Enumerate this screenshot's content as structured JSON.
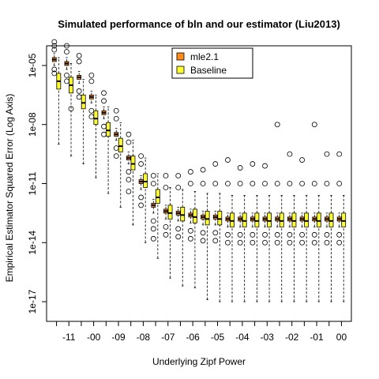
{
  "chart_data": {
    "type": "boxplot",
    "title": "Simulated performance of bln and our estimator (Liu2013)",
    "xlabel": "Underlying Zipf Power",
    "ylabel": "Empirical Estimator Squared Error (Log Axis)",
    "y_scale": "log10",
    "ylim": [
      1e-18,
      0.0001
    ],
    "yticks": [
      "1e-05",
      "1e-08",
      "1e-11",
      "1e-14",
      "1e-17"
    ],
    "ytick_values": [
      1e-05,
      1e-08,
      1e-11,
      1e-14,
      1e-17
    ],
    "xtick_labels": [
      "-11",
      "-00",
      "-09",
      "-08",
      "-07",
      "-06",
      "-05",
      "-04",
      "-03",
      "-02",
      "-01",
      "00"
    ],
    "xtick_label_positions": [
      1,
      3,
      5,
      7,
      9,
      11,
      13,
      15,
      17,
      19,
      21,
      23
    ],
    "categories": [
      "1.1",
      "1.0",
      "0.9",
      "0.8",
      "0.7",
      "0.6",
      "0.5",
      "0.4",
      "0.3",
      "0.2",
      "0.1",
      "0.0"
    ],
    "legend": {
      "placement": "top-center",
      "entries": [
        "mle2.1",
        "Baseline"
      ]
    },
    "series": [
      {
        "name": "mle2.1",
        "color": "#ff8c1a",
        "boxes": [
          {
            "lw": -5.0,
            "q1": -4.8,
            "med": -4.7,
            "q3": -4.6,
            "uw": -4.4,
            "out": [
              -3.8,
              -4.0,
              -4.2,
              -5.2,
              -5.4
            ]
          },
          {
            "lw": -5.2,
            "q1": -5.0,
            "med": -4.9,
            "q3": -4.8,
            "uw": -4.6,
            "out": [
              -4.0,
              -4.3,
              -5.5,
              -5.8
            ]
          },
          {
            "lw": -5.9,
            "q1": -5.7,
            "med": -5.6,
            "q3": -5.5,
            "uw": -5.3,
            "out": [
              -4.5,
              -4.8,
              -6.3,
              -6.6
            ]
          },
          {
            "lw": -6.9,
            "q1": -6.7,
            "med": -6.6,
            "q3": -6.5,
            "uw": -6.3,
            "out": [
              -5.5,
              -5.8,
              -7.3,
              -7.6
            ]
          },
          {
            "lw": -7.7,
            "q1": -7.5,
            "med": -7.4,
            "q3": -7.3,
            "uw": -7.1,
            "out": [
              -6.4,
              -6.8,
              -8.1,
              -8.5
            ]
          },
          {
            "lw": -8.8,
            "q1": -8.6,
            "med": -8.5,
            "q3": -8.4,
            "uw": -8.2,
            "out": [
              -7.3,
              -7.7,
              -9.2,
              -9.6
            ]
          },
          {
            "lw": -10.0,
            "q1": -9.8,
            "med": -9.7,
            "q3": -9.6,
            "uw": -9.4,
            "out": [
              -8.5,
              -8.9,
              -10.4,
              -10.8,
              -11.4
            ]
          },
          {
            "lw": -11.3,
            "q1": -11.0,
            "med": -10.9,
            "q3": -10.8,
            "uw": -10.6,
            "out": [
              -9.6,
              -10.0,
              -11.7,
              -12.1
            ]
          },
          {
            "lw": -12.5,
            "q1": -12.2,
            "med": -12.1,
            "q3": -12.0,
            "uw": -11.8,
            "out": [
              -10.6,
              -11.0,
              -12.9,
              -13.3,
              -13.8
            ]
          },
          {
            "lw": -12.8,
            "q1": -12.5,
            "med": -12.4,
            "q3": -12.3,
            "uw": -12.1,
            "out": [
              -10.6,
              -11.2,
              -13.2,
              -13.6
            ]
          },
          {
            "lw": -12.9,
            "q1": -12.6,
            "med": -12.5,
            "q3": -12.4,
            "uw": -12.2,
            "out": [
              -10.6,
              -11.2,
              -13.3,
              -13.7
            ]
          },
          {
            "lw": -13.0,
            "q1": -12.7,
            "med": -12.6,
            "q3": -12.5,
            "uw": -12.3,
            "out": [
              -10.4,
              -11.0,
              -13.4,
              -13.8
            ]
          },
          {
            "lw": -13.1,
            "q1": -12.8,
            "med": -12.7,
            "q3": -12.6,
            "uw": -12.4,
            "out": [
              -10.3,
              -11.0,
              -13.5,
              -13.9
            ]
          },
          {
            "lw": -13.1,
            "q1": -12.8,
            "med": -12.7,
            "q3": -12.6,
            "uw": -12.4,
            "out": [
              -10.0,
              -11.0,
              -13.5,
              -13.9
            ]
          },
          {
            "lw": -13.2,
            "q1": -12.9,
            "med": -12.8,
            "q3": -12.7,
            "uw": -12.5,
            "out": [
              -9.8,
              -11.0,
              -13.6,
              -14.0
            ]
          },
          {
            "lw": -13.2,
            "q1": -12.9,
            "med": -12.8,
            "q3": -12.7,
            "uw": -12.5,
            "out": [
              -10.2,
              -11.0,
              -13.6,
              -14.0
            ]
          },
          {
            "lw": -13.2,
            "q1": -12.9,
            "med": -12.8,
            "q3": -12.7,
            "uw": -12.5,
            "out": [
              -10.0,
              -11.0,
              -13.6,
              -14.0
            ]
          },
          {
            "lw": -13.2,
            "q1": -12.9,
            "med": -12.8,
            "q3": -12.7,
            "uw": -12.5,
            "out": [
              -10.1,
              -11.0,
              -13.6,
              -14.0
            ]
          },
          {
            "lw": -13.2,
            "q1": -12.9,
            "med": -12.8,
            "q3": -12.7,
            "uw": -12.5,
            "out": [
              -8.0,
              -11.0,
              -13.6,
              -14.0
            ]
          },
          {
            "lw": -13.2,
            "q1": -12.9,
            "med": -12.8,
            "q3": -12.7,
            "uw": -12.5,
            "out": [
              -9.5,
              -11.0,
              -13.6,
              -14.0
            ]
          },
          {
            "lw": -13.2,
            "q1": -12.9,
            "med": -12.8,
            "q3": -12.7,
            "uw": -12.5,
            "out": [
              -9.8,
              -11.0,
              -13.6,
              -14.0
            ]
          },
          {
            "lw": -13.2,
            "q1": -12.9,
            "med": -12.8,
            "q3": -12.7,
            "uw": -12.5,
            "out": [
              -8.0,
              -11.0,
              -13.6,
              -14.0
            ]
          },
          {
            "lw": -13.2,
            "q1": -12.9,
            "med": -12.8,
            "q3": -12.7,
            "uw": -12.5,
            "out": [
              -9.5,
              -11.0,
              -13.6,
              -14.0
            ]
          },
          {
            "lw": -13.2,
            "q1": -12.9,
            "med": -12.8,
            "q3": -12.7,
            "uw": -12.5,
            "out": [
              -9.5,
              -11.0,
              -13.6,
              -14.0
            ]
          }
        ]
      },
      {
        "name": "Baseline",
        "color": "#ffff33",
        "boxes": [
          {
            "lw": -9.0,
            "q1": -6.2,
            "med": -5.8,
            "q3": -5.4,
            "uw": -4.6,
            "out": []
          },
          {
            "lw": -9.6,
            "q1": -6.4,
            "med": -6.0,
            "q3": -5.6,
            "uw": -4.9,
            "out": [
              -7.2
            ]
          },
          {
            "lw": -10.0,
            "q1": -7.2,
            "med": -6.9,
            "q3": -6.5,
            "uw": -5.7,
            "out": []
          },
          {
            "lw": -10.7,
            "q1": -8.0,
            "med": -7.7,
            "q3": -7.3,
            "uw": -6.5,
            "out": []
          },
          {
            "lw": -11.5,
            "q1": -8.6,
            "med": -8.3,
            "q3": -7.9,
            "uw": -7.1,
            "out": []
          },
          {
            "lw": -12.2,
            "q1": -9.4,
            "med": -9.1,
            "q3": -8.7,
            "uw": -7.9,
            "out": []
          },
          {
            "lw": -13.1,
            "q1": -10.3,
            "med": -10.0,
            "q3": -9.6,
            "uw": -8.8,
            "out": []
          },
          {
            "lw": -14.0,
            "q1": -11.2,
            "med": -10.9,
            "q3": -10.5,
            "uw": -9.7,
            "out": []
          },
          {
            "lw": -14.8,
            "q1": -12.0,
            "med": -11.7,
            "q3": -11.3,
            "uw": -10.5,
            "out": []
          },
          {
            "lw": -15.8,
            "q1": -12.8,
            "med": -12.5,
            "q3": -12.1,
            "uw": -11.2,
            "out": []
          },
          {
            "lw": -16.2,
            "q1": -12.9,
            "med": -12.6,
            "q3": -12.2,
            "uw": -11.3,
            "out": []
          },
          {
            "lw": -16.3,
            "q1": -13.0,
            "med": -12.7,
            "q3": -12.3,
            "uw": -11.4,
            "out": []
          },
          {
            "lw": -16.9,
            "q1": -13.1,
            "med": -12.8,
            "q3": -12.4,
            "uw": -11.5,
            "out": []
          },
          {
            "lw": -17.0,
            "q1": -13.1,
            "med": -12.8,
            "q3": -12.4,
            "uw": -11.5,
            "out": []
          },
          {
            "lw": -17.0,
            "q1": -13.2,
            "med": -12.9,
            "q3": -12.5,
            "uw": -11.6,
            "out": []
          },
          {
            "lw": -17.0,
            "q1": -13.2,
            "med": -12.9,
            "q3": -12.5,
            "uw": -11.6,
            "out": []
          },
          {
            "lw": -17.0,
            "q1": -13.2,
            "med": -12.9,
            "q3": -12.5,
            "uw": -11.6,
            "out": []
          },
          {
            "lw": -17.0,
            "q1": -13.2,
            "med": -12.9,
            "q3": -12.5,
            "uw": -11.6,
            "out": []
          },
          {
            "lw": -17.0,
            "q1": -13.2,
            "med": -12.9,
            "q3": -12.5,
            "uw": -11.6,
            "out": []
          },
          {
            "lw": -17.0,
            "q1": -13.2,
            "med": -12.9,
            "q3": -12.5,
            "uw": -11.6,
            "out": []
          },
          {
            "lw": -17.0,
            "q1": -13.2,
            "med": -12.9,
            "q3": -12.5,
            "uw": -11.6,
            "out": []
          },
          {
            "lw": -17.0,
            "q1": -13.2,
            "med": -12.9,
            "q3": -12.5,
            "uw": -11.6,
            "out": []
          },
          {
            "lw": -17.0,
            "q1": -13.2,
            "med": -12.9,
            "q3": -12.5,
            "uw": -11.6,
            "out": []
          },
          {
            "lw": -17.0,
            "q1": -13.2,
            "med": -12.9,
            "q3": -12.5,
            "uw": -11.6,
            "out": []
          }
        ]
      }
    ]
  }
}
